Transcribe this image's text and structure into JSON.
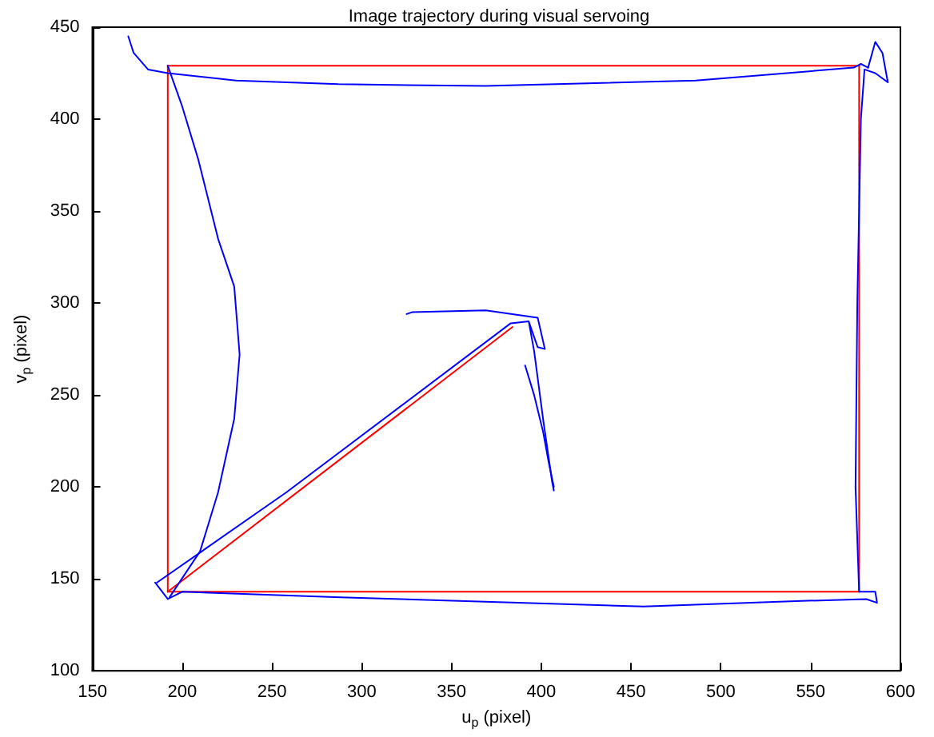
{
  "chart_data": {
    "type": "line",
    "title": "Image trajectory during visual servoing",
    "xlabel": "u$_{p}$ (pixel)",
    "ylabel": "v$_{p}$ (pixel)",
    "xlim": [
      150,
      600
    ],
    "xticks": [
      150,
      200,
      250,
      300,
      350,
      400,
      450,
      500,
      550,
      600
    ],
    "ylim": [
      100,
      450
    ],
    "yticks": [
      100,
      150,
      200,
      250,
      300,
      350,
      400,
      450
    ],
    "grid": false,
    "marker": "none",
    "line_style": "solid",
    "series": [
      {
        "color": "#ff0000",
        "x": [
          192,
          577
        ],
        "values": [
          429,
          429
        ]
      },
      {
        "color": "#ff0000",
        "x": [
          577,
          577
        ],
        "values": [
          429,
          143
        ]
      },
      {
        "color": "#ff0000",
        "x": [
          577,
          192
        ],
        "values": [
          143,
          143
        ]
      },
      {
        "color": "#ff0000",
        "x": [
          192,
          192
        ],
        "values": [
          143,
          429
        ]
      },
      {
        "color": "#ff0000",
        "x": [
          192,
          384
        ],
        "values": [
          143,
          287
        ]
      },
      {
        "color": "#0000ff",
        "x": [
          170,
          173,
          181,
          192,
          230,
          287,
          369,
          486,
          574,
          578,
          582
        ],
        "values": [
          445,
          436,
          427,
          425,
          421,
          419,
          418,
          421,
          428,
          430,
          428
        ]
      },
      {
        "color": "#0000ff",
        "x": [
          582,
          586,
          590,
          593,
          586,
          580,
          578,
          576,
          575,
          577
        ],
        "values": [
          428,
          442,
          436,
          420,
          425,
          427,
          400,
          300,
          200,
          143
        ]
      },
      {
        "color": "#0000ff",
        "x": [
          577,
          586,
          587,
          581,
          545,
          457,
          387,
          288,
          200,
          192,
          185
        ],
        "values": [
          143,
          143,
          137,
          139,
          138,
          135,
          137,
          140,
          143,
          139,
          148
        ]
      },
      {
        "color": "#0000ff",
        "x": [
          193,
          210,
          220,
          229,
          232,
          229,
          220,
          209,
          200,
          192
        ],
        "values": [
          140,
          165,
          197,
          237,
          272,
          309,
          335,
          378,
          407,
          429
        ]
      },
      {
        "color": "#0000ff",
        "x": [
          186,
          258,
          383,
          393
        ],
        "values": [
          148,
          197,
          289,
          290
        ]
      },
      {
        "color": "#0000ff",
        "x": [
          325,
          328,
          369,
          398,
          402,
          398,
          393,
          396,
          401,
          406,
          407
        ],
        "values": [
          294,
          295,
          296,
          292,
          275,
          276,
          290,
          274,
          237,
          203,
          198
        ]
      },
      {
        "color": "#0000ff",
        "x": [
          391,
          396,
          401,
          404,
          407
        ],
        "values": [
          266,
          250,
          230,
          214,
          200
        ]
      }
    ]
  }
}
